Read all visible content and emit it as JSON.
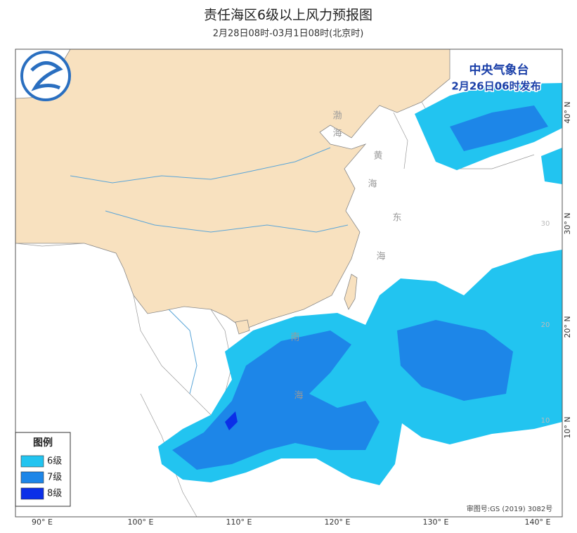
{
  "header": {
    "title": "责任海区6级以上风力预报图",
    "subtitle": "2月28日08时-03月1日08时(北京时)"
  },
  "issuer": {
    "agency": "中央气象台",
    "issued": "2月26日06时发布"
  },
  "legend": {
    "title": "图例",
    "items": [
      {
        "label": "6级",
        "color": "#22c4f0"
      },
      {
        "label": "7级",
        "color": "#1d86e8"
      },
      {
        "label": "8级",
        "color": "#0b2fe8"
      }
    ]
  },
  "lon_labels": [
    "90° E",
    "100° E",
    "110° E",
    "120° E",
    "130° E",
    "140° E"
  ],
  "lat_labels": [
    "40° N",
    "30° N",
    "20° N",
    "10° N"
  ],
  "inner_lat_labels": [
    "30",
    "20",
    "10"
  ],
  "sea_labels": [
    {
      "chars": [
        "渤",
        "海"
      ]
    },
    {
      "chars": [
        "黄",
        "海"
      ]
    },
    {
      "chars": [
        "东",
        "海"
      ]
    },
    {
      "chars": [
        "南",
        "海"
      ]
    }
  ],
  "approval": "审图号:GS (2019) 3082号"
}
